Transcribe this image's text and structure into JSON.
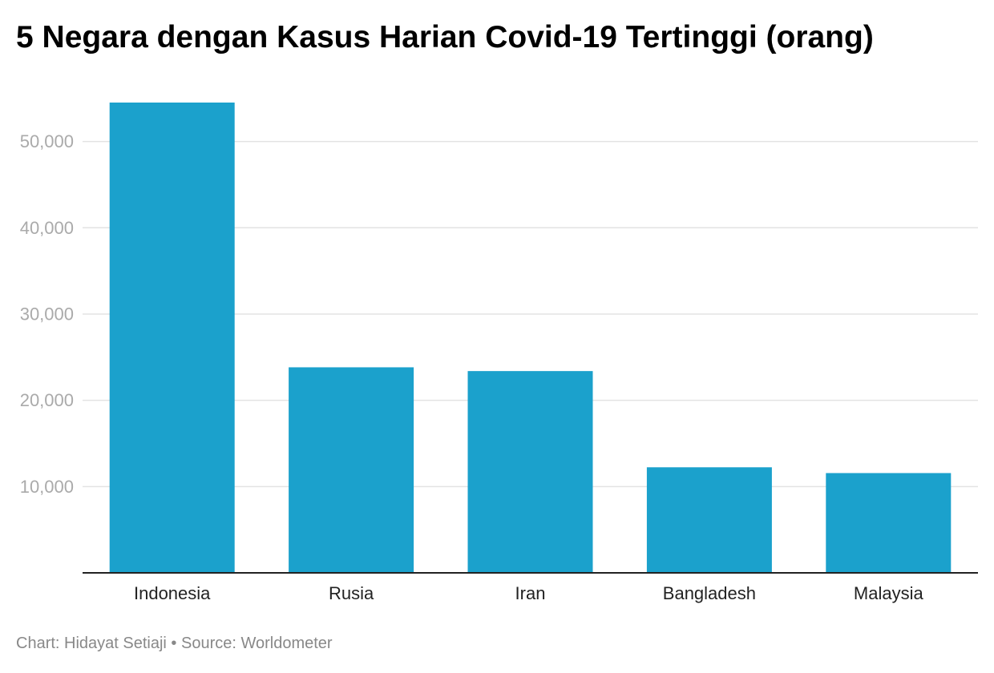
{
  "footer": {
    "credit": "Chart: Hidayat Setiaji",
    "separator": " • ",
    "source": "Source: Worldometer"
  },
  "colors": {
    "bar": "#1ba1cc",
    "gridline": "#e3e3e3",
    "axis": "#222222"
  },
  "chart_data": {
    "type": "bar",
    "title": "5 Negara dengan Kasus Harian Covid-19 Tertinggi (orang)",
    "xlabel": "",
    "ylabel": "",
    "categories": [
      "Indonesia",
      "Rusia",
      "Iran",
      "Bangladesh",
      "Malaysia"
    ],
    "values": [
      54517,
      23827,
      23391,
      12236,
      11566
    ],
    "ylim": [
      0,
      54517
    ],
    "yticks": [
      10000,
      20000,
      30000,
      40000,
      50000
    ],
    "ytick_labels": [
      "10,000",
      "20,000",
      "30,000",
      "40,000",
      "50,000"
    ],
    "grid": true,
    "legend": "none"
  }
}
